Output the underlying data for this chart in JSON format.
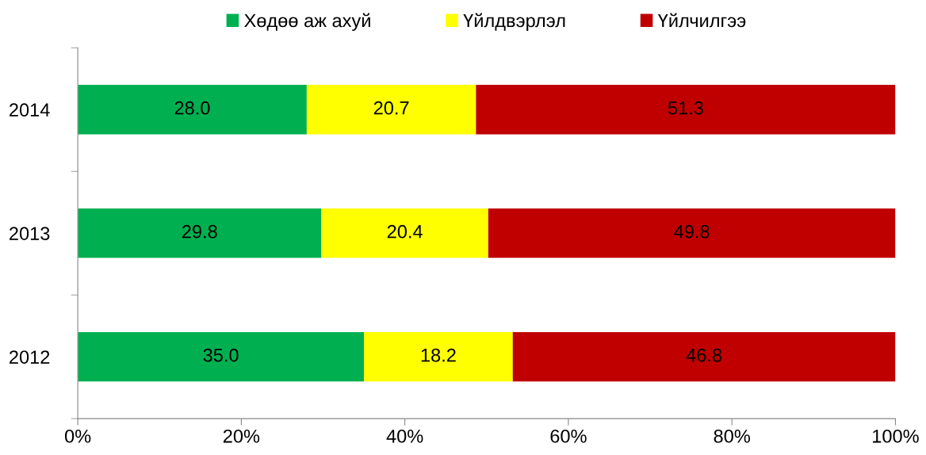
{
  "chart_data": {
    "type": "bar",
    "orientation": "horizontal",
    "stacked": true,
    "categories": [
      "2014",
      "2013",
      "2012"
    ],
    "series": [
      {
        "name": "Хөдөө аж ахуй",
        "color": "#00b050",
        "values": [
          28.0,
          29.8,
          35.0
        ],
        "value_labels": [
          "28.0",
          "29.8",
          "35.0"
        ]
      },
      {
        "name": "Үйлдвэрлэл",
        "color": "#ffff00",
        "values": [
          20.7,
          20.4,
          18.2
        ],
        "value_labels": [
          "20.7",
          "20.4",
          "18.2"
        ]
      },
      {
        "name": "Үйлчилгээ",
        "color": "#c00000",
        "values": [
          51.3,
          49.8,
          46.8
        ],
        "value_labels": [
          "51.3",
          "49.8",
          "46.8"
        ]
      }
    ],
    "xlim": [
      0,
      100
    ],
    "xticks": [
      {
        "value": 0,
        "label": "0%"
      },
      {
        "value": 20,
        "label": "20%"
      },
      {
        "value": 40,
        "label": "40%"
      },
      {
        "value": 60,
        "label": "60%"
      },
      {
        "value": 80,
        "label": "80%"
      },
      {
        "value": 100,
        "label": "100%"
      }
    ],
    "grid": false,
    "legend": "top"
  }
}
